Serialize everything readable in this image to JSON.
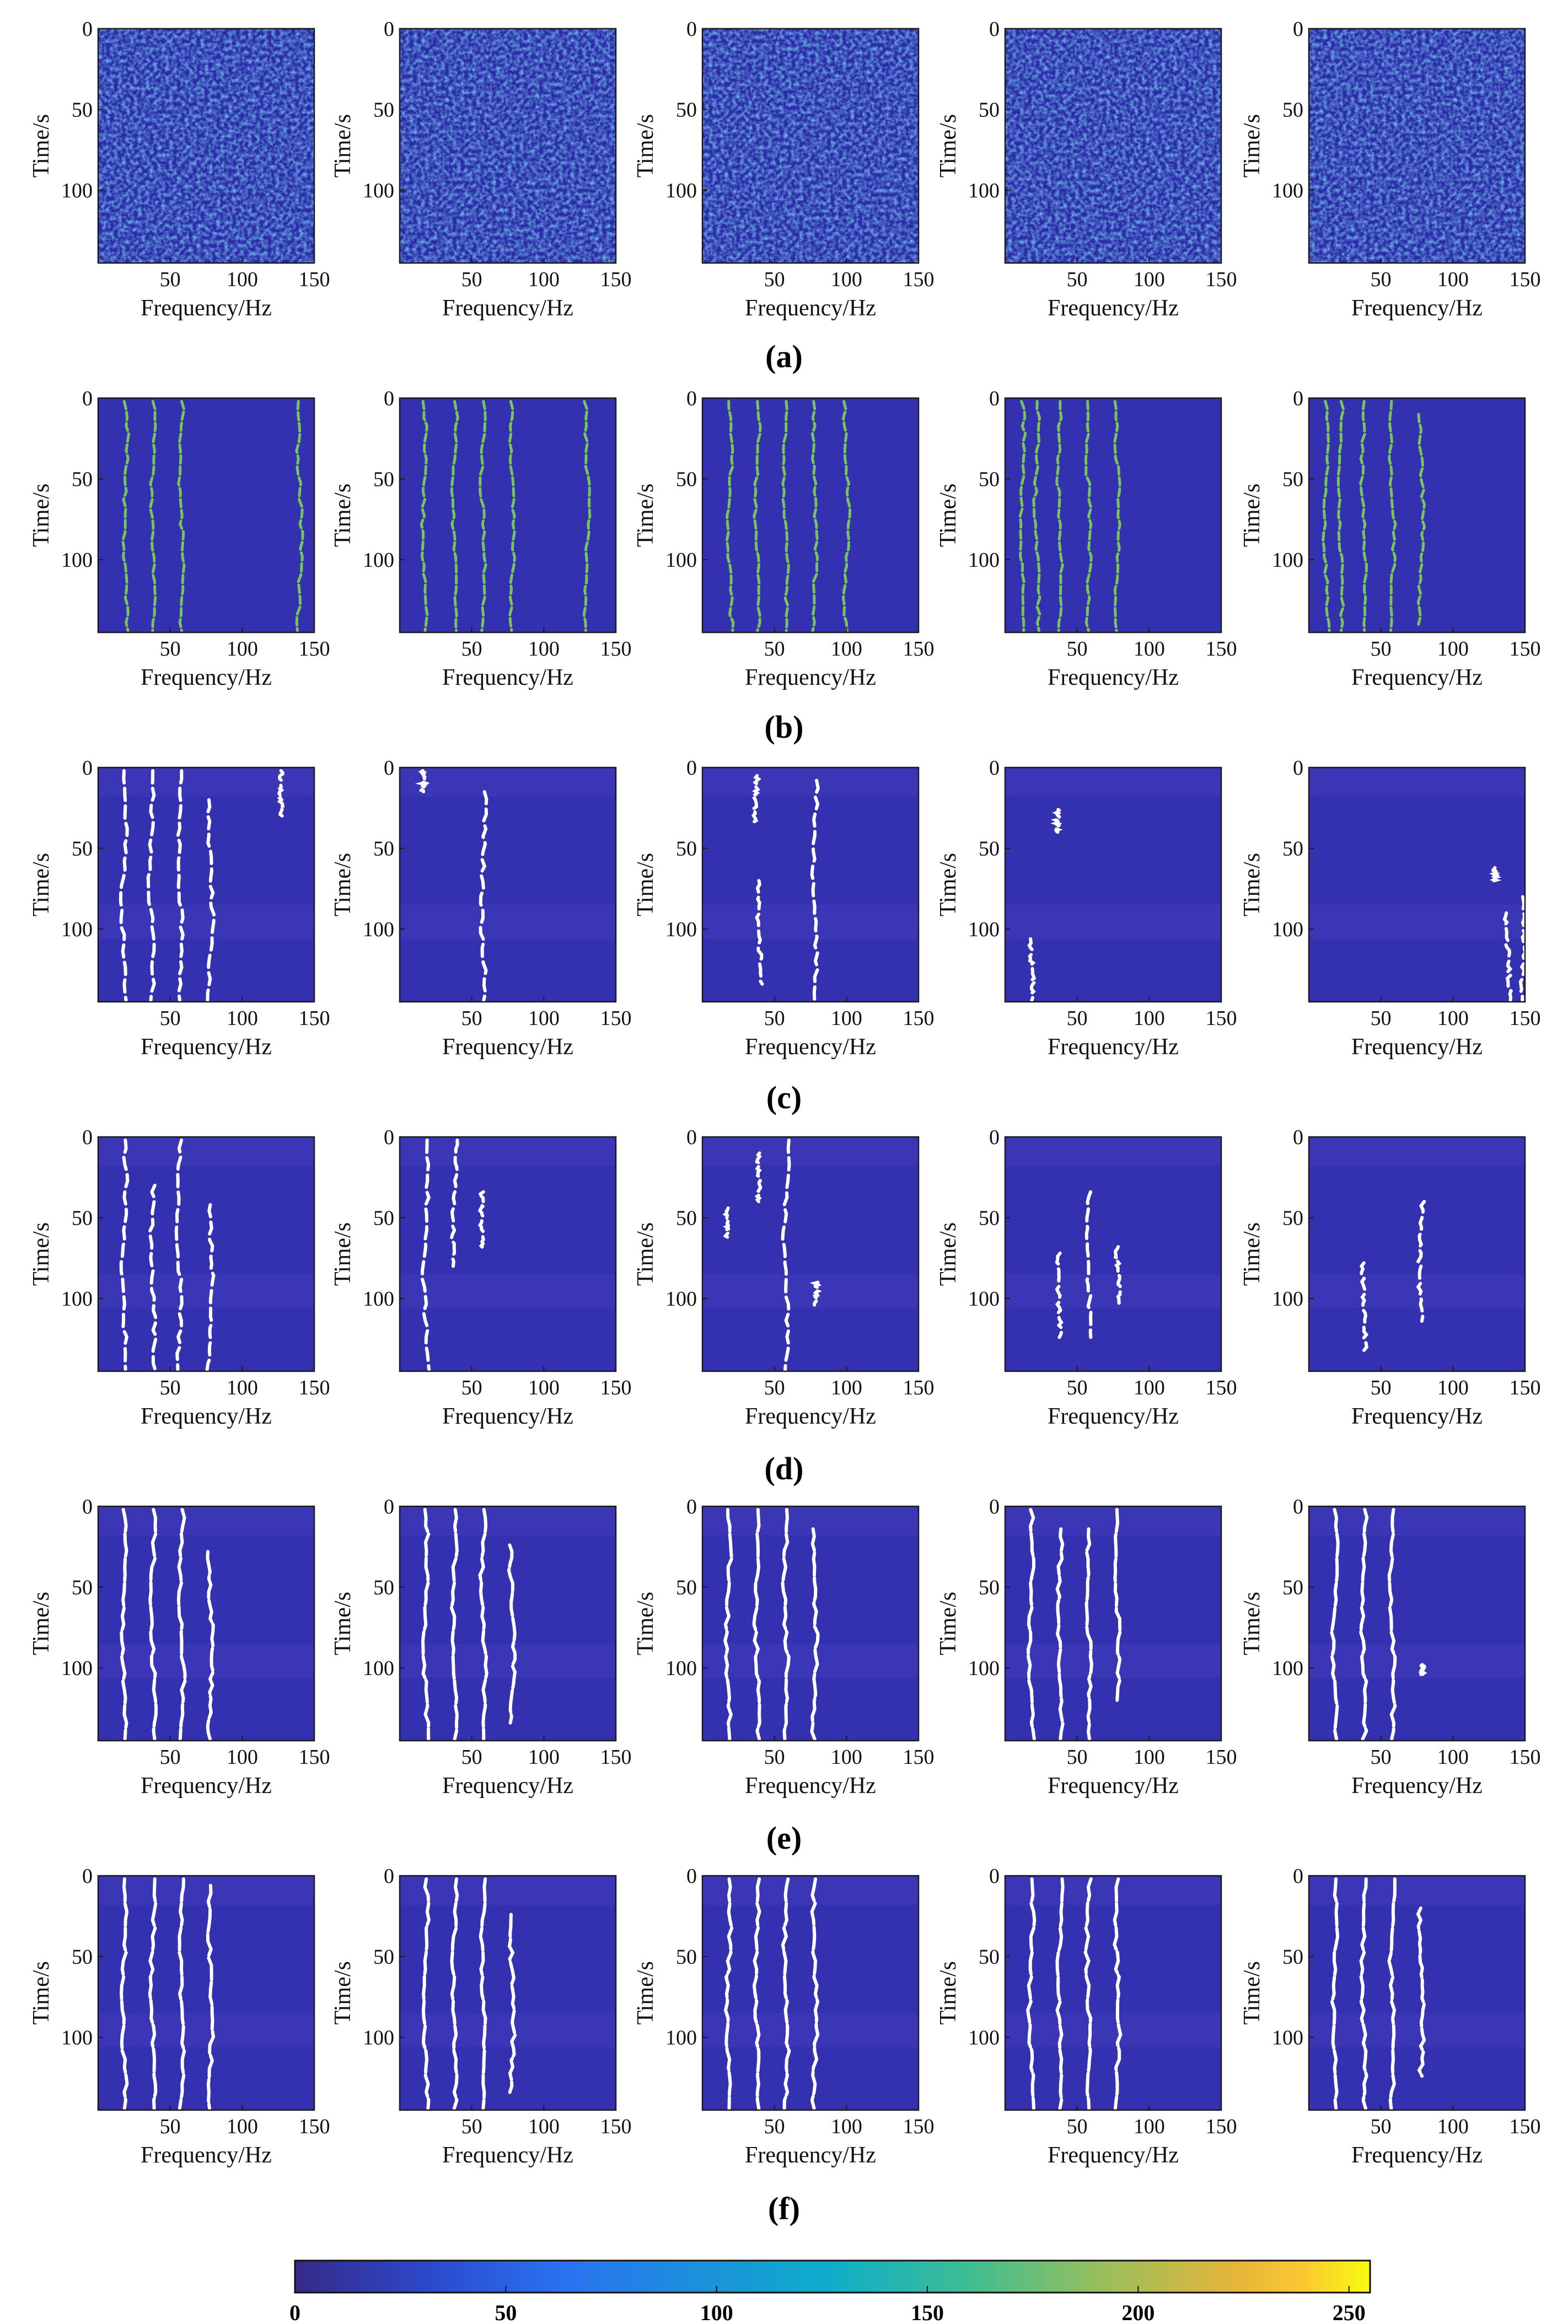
{
  "chart_data": {
    "type": "heatmap",
    "layout": {
      "rows": 6,
      "cols": 5
    },
    "xlabel": "Frequency/Hz",
    "ylabel": "Time/s",
    "xlim": [
      0,
      150
    ],
    "ylim": [
      0,
      145
    ],
    "y_reversed": true,
    "xticks": [
      50,
      100,
      150
    ],
    "yticks": [
      0,
      50,
      100
    ],
    "row_labels": [
      "(a)",
      "(b)",
      "(c)",
      "(d)",
      "(e)",
      "(f)"
    ],
    "row_content": [
      "noise",
      "traces",
      "traces",
      "traces",
      "traces",
      "traces"
    ],
    "colormap": "parula",
    "colorbar": {
      "range": [
        0,
        255
      ],
      "ticks": [
        0,
        50,
        100,
        150,
        200,
        250
      ],
      "orientation": "horizontal",
      "placement": "bottom"
    },
    "colors": {
      "background": "#3431b0",
      "band": "#3a36b6",
      "trace_white": "#ffffff",
      "trace_green": "#79c45a",
      "noise_low": "#2b2aa8",
      "noise_high": "#3ab0e0"
    },
    "panels": [
      [
        {
          "traces": []
        },
        {
          "traces": []
        },
        {
          "traces": []
        },
        {
          "traces": []
        },
        {
          "traces": []
        }
      ],
      [
        {
          "traces": [
            {
              "f": 19,
              "t": [
                2,
                144
              ]
            },
            {
              "f": 38,
              "t": [
                2,
                144
              ]
            },
            {
              "f": 58,
              "t": [
                2,
                144
              ]
            },
            {
              "f": 140,
              "t": [
                2,
                144
              ]
            }
          ]
        },
        {
          "traces": [
            {
              "f": 17,
              "t": [
                2,
                144
              ]
            },
            {
              "f": 38,
              "t": [
                2,
                144
              ]
            },
            {
              "f": 58,
              "t": [
                2,
                144
              ]
            },
            {
              "f": 78,
              "t": [
                2,
                144
              ]
            },
            {
              "f": 130,
              "t": [
                2,
                144
              ]
            }
          ]
        },
        {
          "traces": [
            {
              "f": 19,
              "t": [
                2,
                144
              ]
            },
            {
              "f": 38,
              "t": [
                2,
                144
              ]
            },
            {
              "f": 58,
              "t": [
                2,
                144
              ]
            },
            {
              "f": 78,
              "t": [
                2,
                144
              ]
            },
            {
              "f": 100,
              "t": [
                2,
                144
              ]
            }
          ]
        },
        {
          "traces": [
            {
              "f": 12,
              "t": [
                2,
                144
              ]
            },
            {
              "f": 22,
              "t": [
                2,
                144
              ]
            },
            {
              "f": 38,
              "t": [
                2,
                144
              ]
            },
            {
              "f": 58,
              "t": [
                2,
                144
              ]
            },
            {
              "f": 78,
              "t": [
                2,
                144
              ]
            }
          ]
        },
        {
          "traces": [
            {
              "f": 12,
              "t": [
                2,
                144
              ]
            },
            {
              "f": 22,
              "t": [
                2,
                144
              ]
            },
            {
              "f": 38,
              "t": [
                2,
                144
              ]
            },
            {
              "f": 58,
              "t": [
                2,
                144
              ]
            },
            {
              "f": 78,
              "t": [
                10,
                140
              ]
            }
          ]
        }
      ],
      [
        {
          "traces": [
            {
              "f": 18,
              "t": [
                2,
                144
              ]
            },
            {
              "f": 37,
              "t": [
                2,
                144
              ]
            },
            {
              "f": 57,
              "t": [
                2,
                144
              ]
            },
            {
              "f": 78,
              "t": [
                20,
                144
              ]
            },
            {
              "f": 128,
              "t": [
                2,
                30
              ]
            }
          ]
        },
        {
          "traces": [
            {
              "f": 58,
              "t": [
                15,
                144
              ]
            },
            {
              "f": 15,
              "t": [
                2,
                15
              ]
            }
          ]
        },
        {
          "traces": [
            {
              "f": 40,
              "t": [
                70,
                134
              ]
            },
            {
              "f": 78,
              "t": [
                8,
                144
              ]
            },
            {
              "f": 37,
              "t": [
                5,
                35
              ]
            }
          ]
        },
        {
          "traces": [
            {
              "f": 18,
              "t": [
                106,
                144
              ]
            },
            {
              "f": 36,
              "t": [
                26,
                40
              ]
            }
          ]
        },
        {
          "traces": [
            {
              "f": 138,
              "t": [
                90,
                144
              ]
            },
            {
              "f": 130,
              "t": [
                62,
                70
              ]
            },
            {
              "f": 148,
              "t": [
                80,
                144
              ]
            }
          ]
        }
      ],
      [
        {
          "traces": [
            {
              "f": 18,
              "t": [
                2,
                144
              ]
            },
            {
              "f": 38,
              "t": [
                30,
                144
              ]
            },
            {
              "f": 56,
              "t": [
                2,
                144
              ]
            },
            {
              "f": 78,
              "t": [
                42,
                144
              ]
            }
          ]
        },
        {
          "traces": [
            {
              "f": 18,
              "t": [
                2,
                144
              ]
            },
            {
              "f": 38,
              "t": [
                2,
                80
              ]
            },
            {
              "f": 58,
              "t": [
                34,
                70
              ]
            }
          ]
        },
        {
          "traces": [
            {
              "f": 38,
              "t": [
                10,
                40
              ]
            },
            {
              "f": 58,
              "t": [
                2,
                144
              ]
            },
            {
              "f": 18,
              "t": [
                44,
                62
              ]
            },
            {
              "f": 78,
              "t": [
                90,
                104
              ]
            }
          ]
        },
        {
          "traces": [
            {
              "f": 38,
              "t": [
                72,
                124
              ]
            },
            {
              "f": 58,
              "t": [
                34,
                124
              ]
            },
            {
              "f": 78,
              "t": [
                68,
                104
              ]
            }
          ]
        },
        {
          "traces": [
            {
              "f": 78,
              "t": [
                40,
                114
              ]
            },
            {
              "f": 38,
              "t": [
                78,
                132
              ]
            }
          ]
        }
      ],
      [
        {
          "traces": [
            {
              "f": 18,
              "t": [
                2,
                144
              ]
            },
            {
              "f": 38,
              "t": [
                2,
                144
              ]
            },
            {
              "f": 58,
              "t": [
                2,
                144
              ]
            },
            {
              "f": 78,
              "t": [
                28,
                144
              ]
            }
          ]
        },
        {
          "traces": [
            {
              "f": 18,
              "t": [
                2,
                144
              ]
            },
            {
              "f": 38,
              "t": [
                2,
                144
              ]
            },
            {
              "f": 58,
              "t": [
                2,
                144
              ]
            },
            {
              "f": 78,
              "t": [
                24,
                134
              ]
            }
          ]
        },
        {
          "traces": [
            {
              "f": 18,
              "t": [
                2,
                144
              ]
            },
            {
              "f": 38,
              "t": [
                2,
                144
              ]
            },
            {
              "f": 58,
              "t": [
                2,
                144
              ]
            },
            {
              "f": 78,
              "t": [
                14,
                144
              ]
            }
          ]
        },
        {
          "traces": [
            {
              "f": 18,
              "t": [
                2,
                144
              ]
            },
            {
              "f": 38,
              "t": [
                14,
                144
              ]
            },
            {
              "f": 58,
              "t": [
                14,
                144
              ]
            },
            {
              "f": 78,
              "t": [
                2,
                120
              ]
            }
          ]
        },
        {
          "traces": [
            {
              "f": 18,
              "t": [
                2,
                144
              ]
            },
            {
              "f": 38,
              "t": [
                2,
                144
              ]
            },
            {
              "f": 58,
              "t": [
                2,
                144
              ]
            },
            {
              "f": 78,
              "t": [
                98,
                104
              ]
            }
          ]
        }
      ],
      [
        {
          "traces": [
            {
              "f": 18,
              "t": [
                2,
                144
              ]
            },
            {
              "f": 38,
              "t": [
                2,
                144
              ]
            },
            {
              "f": 58,
              "t": [
                2,
                144
              ]
            },
            {
              "f": 78,
              "t": [
                6,
                144
              ]
            }
          ]
        },
        {
          "traces": [
            {
              "f": 18,
              "t": [
                2,
                144
              ]
            },
            {
              "f": 38,
              "t": [
                2,
                144
              ]
            },
            {
              "f": 58,
              "t": [
                2,
                144
              ]
            },
            {
              "f": 78,
              "t": [
                24,
                134
              ]
            }
          ]
        },
        {
          "traces": [
            {
              "f": 18,
              "t": [
                2,
                144
              ]
            },
            {
              "f": 38,
              "t": [
                2,
                144
              ]
            },
            {
              "f": 58,
              "t": [
                2,
                144
              ]
            },
            {
              "f": 78,
              "t": [
                2,
                144
              ]
            }
          ]
        },
        {
          "traces": [
            {
              "f": 18,
              "t": [
                2,
                144
              ]
            },
            {
              "f": 38,
              "t": [
                2,
                144
              ]
            },
            {
              "f": 58,
              "t": [
                2,
                144
              ]
            },
            {
              "f": 78,
              "t": [
                2,
                144
              ]
            }
          ]
        },
        {
          "traces": [
            {
              "f": 18,
              "t": [
                2,
                144
              ]
            },
            {
              "f": 38,
              "t": [
                2,
                144
              ]
            },
            {
              "f": 58,
              "t": [
                2,
                144
              ]
            },
            {
              "f": 78,
              "t": [
                20,
                124
              ]
            }
          ]
        }
      ]
    ]
  }
}
